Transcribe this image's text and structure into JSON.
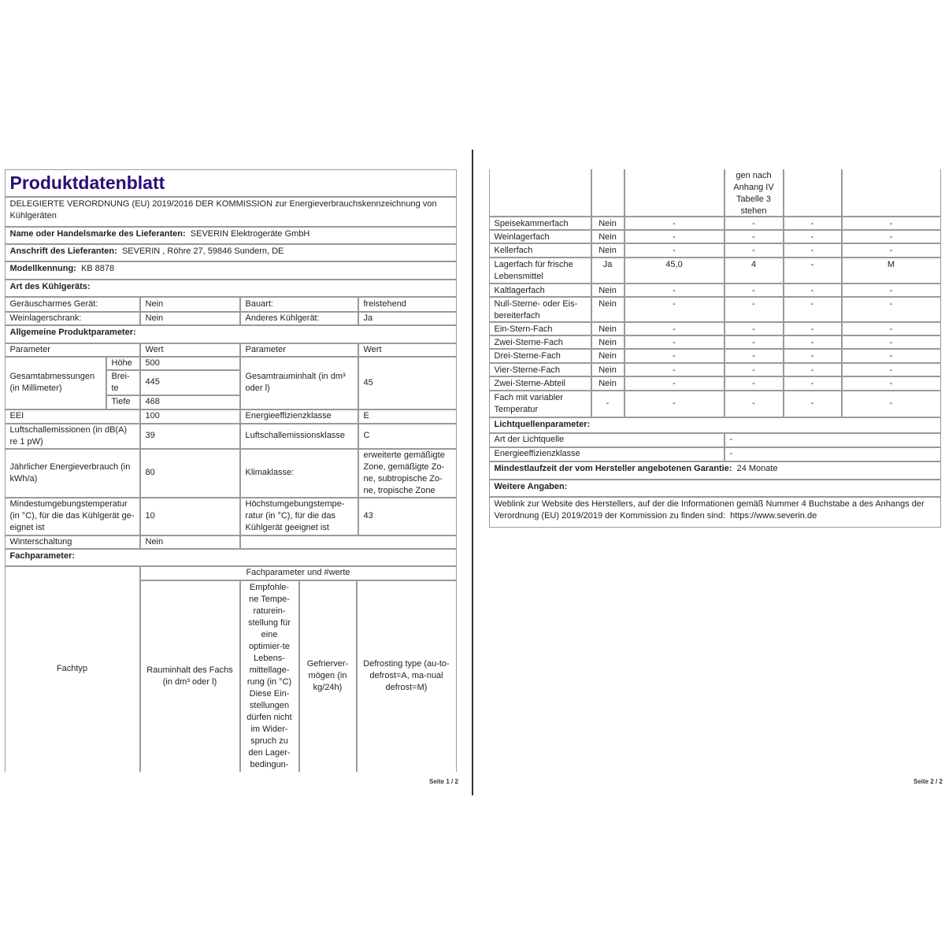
{
  "page1": {
    "title": "Produktdatenblatt",
    "subtitle": "DELEGIERTE VERORDNUNG (EU) 2019/2016 DER KOMMISSION zur Energieverbrauchskennzeichnung von Kühlgeräten",
    "supplier_name_label": "Name oder Handelsmarke des Lieferanten:",
    "supplier_name": "SEVERIN Elektrogeräte GmbH",
    "supplier_address_label": "Anschrift des Lieferanten:",
    "supplier_address": "SEVERIN , Röhre 27, 59846 Sundern, DE",
    "model_label": "Modellkennung:",
    "model": "KB 8878",
    "type_heading": "Art des Kühlgeräts:",
    "type_rows": [
      {
        "label": "Geräuscharmes Gerät:",
        "value": "Nein",
        "label2": "Bauart:",
        "value2": "freistehend"
      },
      {
        "label": "Weinlagerschrank:",
        "value": "Nein",
        "label2": "Anderes Kühlgerät:",
        "value2": "Ja"
      }
    ],
    "general_heading": "Allgemeine Produktparameter:",
    "general_header": {
      "param": "Parameter",
      "value": "Wert",
      "param2": "Parameter",
      "value2": "Wert"
    },
    "dimensions": {
      "label": "Gesamtabmessungen (in Millimeter)",
      "height_label": "Höhe",
      "height": "500",
      "width_label": "Brei-te",
      "width": "445",
      "depth_label": "Tiefe",
      "depth": "468",
      "volume_label": "Gesamtrauminhalt (in dm³ oder l)",
      "volume": "45"
    },
    "general_rows": [
      {
        "label": "EEI",
        "value": "100",
        "label2": "Energieeffizienzklasse",
        "value2": "E"
      },
      {
        "label": "Luftschallemissionen (in dB(A) re 1 pW)",
        "value": "39",
        "label2": "Luftschallemissionsklasse",
        "value2": "C"
      },
      {
        "label": "Jährlicher Energieverbrauch (in kWh/a)",
        "value": "80",
        "label2": "Klimaklasse:",
        "value2": "erweiterte gemäßigte Zone, gemäßigte Zo-ne, subtropische Zo-ne, tropische Zone"
      },
      {
        "label": "Mindestumgebungstemperatur (in °C), für die das Kühlgerät ge-eignet ist",
        "value": "10",
        "label2": "Höchstumgebungstempe-ratur (in °C), für die das Kühlgerät geeignet ist",
        "value2": "43"
      },
      {
        "label": "Winterschaltung",
        "value": "Nein"
      }
    ],
    "compartment_heading": "Fachparameter:",
    "compartment_header": {
      "type": "Fachtyp",
      "group": "Fachparameter und #werte",
      "volume": "Rauminhalt des Fachs (in dm³ oder l)",
      "temp": "Empfohle-ne Tempe-raturein-stellung für eine optimier-te Lebens-mittellage-rung (in °C) Diese Ein-stellungen dürfen nicht im Wider-spruch zu den Lager-bedingun-",
      "freeze": "Gefrierver-mögen (in kg/24h)",
      "defrost": "Defrosting type (au-to-defrost=A, ma-nual defrost=M)"
    },
    "page_number": "Seite 1 / 2"
  },
  "page2": {
    "temp_continued": "gen nach Anhang IV Tabelle 3 stehen",
    "compartments": [
      {
        "name": "Speisekammerfach",
        "present": "Nein",
        "volume": "-",
        "temp": "-",
        "freeze": "-",
        "defrost": "-"
      },
      {
        "name": "Weinlagerfach",
        "present": "Nein",
        "volume": "-",
        "temp": "-",
        "freeze": "-",
        "defrost": "-"
      },
      {
        "name": "Kellerfach",
        "present": "Nein",
        "volume": "-",
        "temp": "-",
        "freeze": "-",
        "defrost": "-"
      },
      {
        "name": "Lagerfach für frische Lebensmittel",
        "present": "Ja",
        "volume": "45,0",
        "temp": "4",
        "freeze": "-",
        "defrost": "M"
      },
      {
        "name": "Kaltlagerfach",
        "present": "Nein",
        "volume": "-",
        "temp": "-",
        "freeze": "-",
        "defrost": "-"
      },
      {
        "name": "Null-Sterne- oder Eis-bereiterfach",
        "present": "Nein",
        "volume": "-",
        "temp": "-",
        "freeze": "-",
        "defrost": "-"
      },
      {
        "name": "Ein-Stern-Fach",
        "present": "Nein",
        "volume": "-",
        "temp": "-",
        "freeze": "-",
        "defrost": "-"
      },
      {
        "name": "Zwei-Sterne-Fach",
        "present": "Nein",
        "volume": "-",
        "temp": "-",
        "freeze": "-",
        "defrost": "-"
      },
      {
        "name": "Drei-Sterne-Fach",
        "present": "Nein",
        "volume": "-",
        "temp": "-",
        "freeze": "-",
        "defrost": "-"
      },
      {
        "name": "Vier-Sterne-Fach",
        "present": "Nein",
        "volume": "-",
        "temp": "-",
        "freeze": "-",
        "defrost": "-"
      },
      {
        "name": "Zwei-Sterne-Abteil",
        "present": "Nein",
        "volume": "-",
        "temp": "-",
        "freeze": "-",
        "defrost": "-"
      },
      {
        "name": "Fach mit variabler Temperatur",
        "present": "-",
        "volume": "-",
        "temp": "-",
        "freeze": "-",
        "defrost": "-"
      }
    ],
    "light_heading": "Lichtquellenparameter:",
    "light_rows": [
      {
        "label": "Art der Lichtquelle",
        "value": "-"
      },
      {
        "label": "Energieeffizienzklasse",
        "value": "-"
      }
    ],
    "warranty_label": "Mindestlaufzeit der vom Hersteller angebotenen Garantie:",
    "warranty": "24 Monate",
    "further_heading": "Weitere Angaben:",
    "weblink_text": "Weblink zur Website des Herstellers, auf der die Informationen gemäß Nummer 4 Buchstabe a des Anhangs der Verordnung (EU) 2019/2019 der Kommission zu finden sind:",
    "weblink_url": "https://www.severin.de",
    "page_number": "Seite 2 / 2"
  }
}
